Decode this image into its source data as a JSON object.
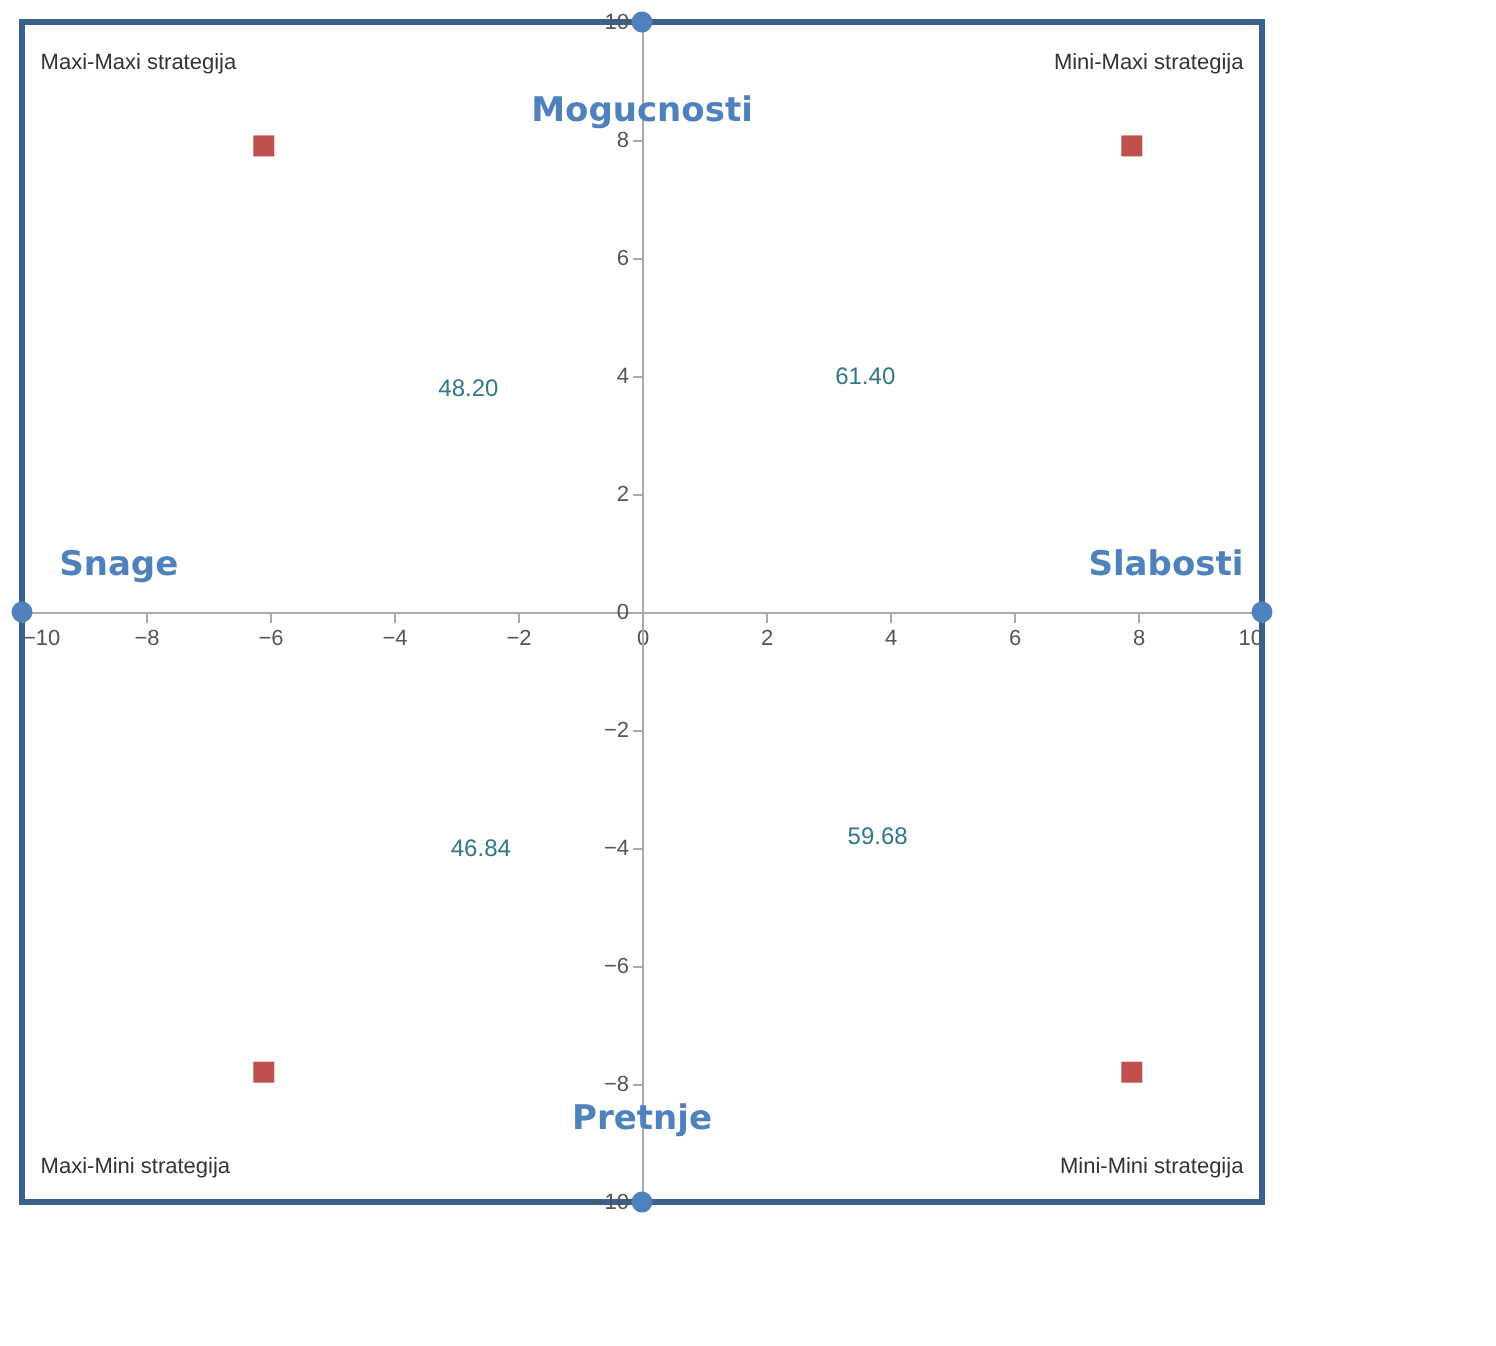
{
  "chart_data": {
    "type": "scatter",
    "xlim": [
      -10,
      10
    ],
    "ylim": [
      -10,
      10
    ],
    "xticks": [
      -10,
      -8,
      -6,
      -4,
      -2,
      0,
      2,
      4,
      6,
      8,
      10
    ],
    "yticks": [
      -10,
      -8,
      -6,
      -4,
      -2,
      0,
      2,
      4,
      6,
      8,
      10
    ],
    "grid": false,
    "series": [
      {
        "color": "#c0504d",
        "marker": "square",
        "x": [
          -6.1,
          7.9,
          -6.1,
          7.9
        ],
        "values": [
          7.9,
          7.9,
          -7.8,
          -7.8
        ]
      },
      {
        "color": "#4f81bd",
        "marker": "circle",
        "x": [
          0,
          10,
          -10,
          0
        ],
        "values": [
          10,
          0,
          0,
          -10
        ]
      }
    ],
    "annotations": [
      "Mogucnosti",
      "Pretnje",
      "Snage",
      "Slabosti",
      "Maxi-Maxi strategija",
      "Mini-Maxi strategija",
      "Maxi-Mini strategija",
      "Mini-Mini strategija",
      "48.20",
      "61.40",
      "46.84",
      "59.68"
    ]
  }
}
